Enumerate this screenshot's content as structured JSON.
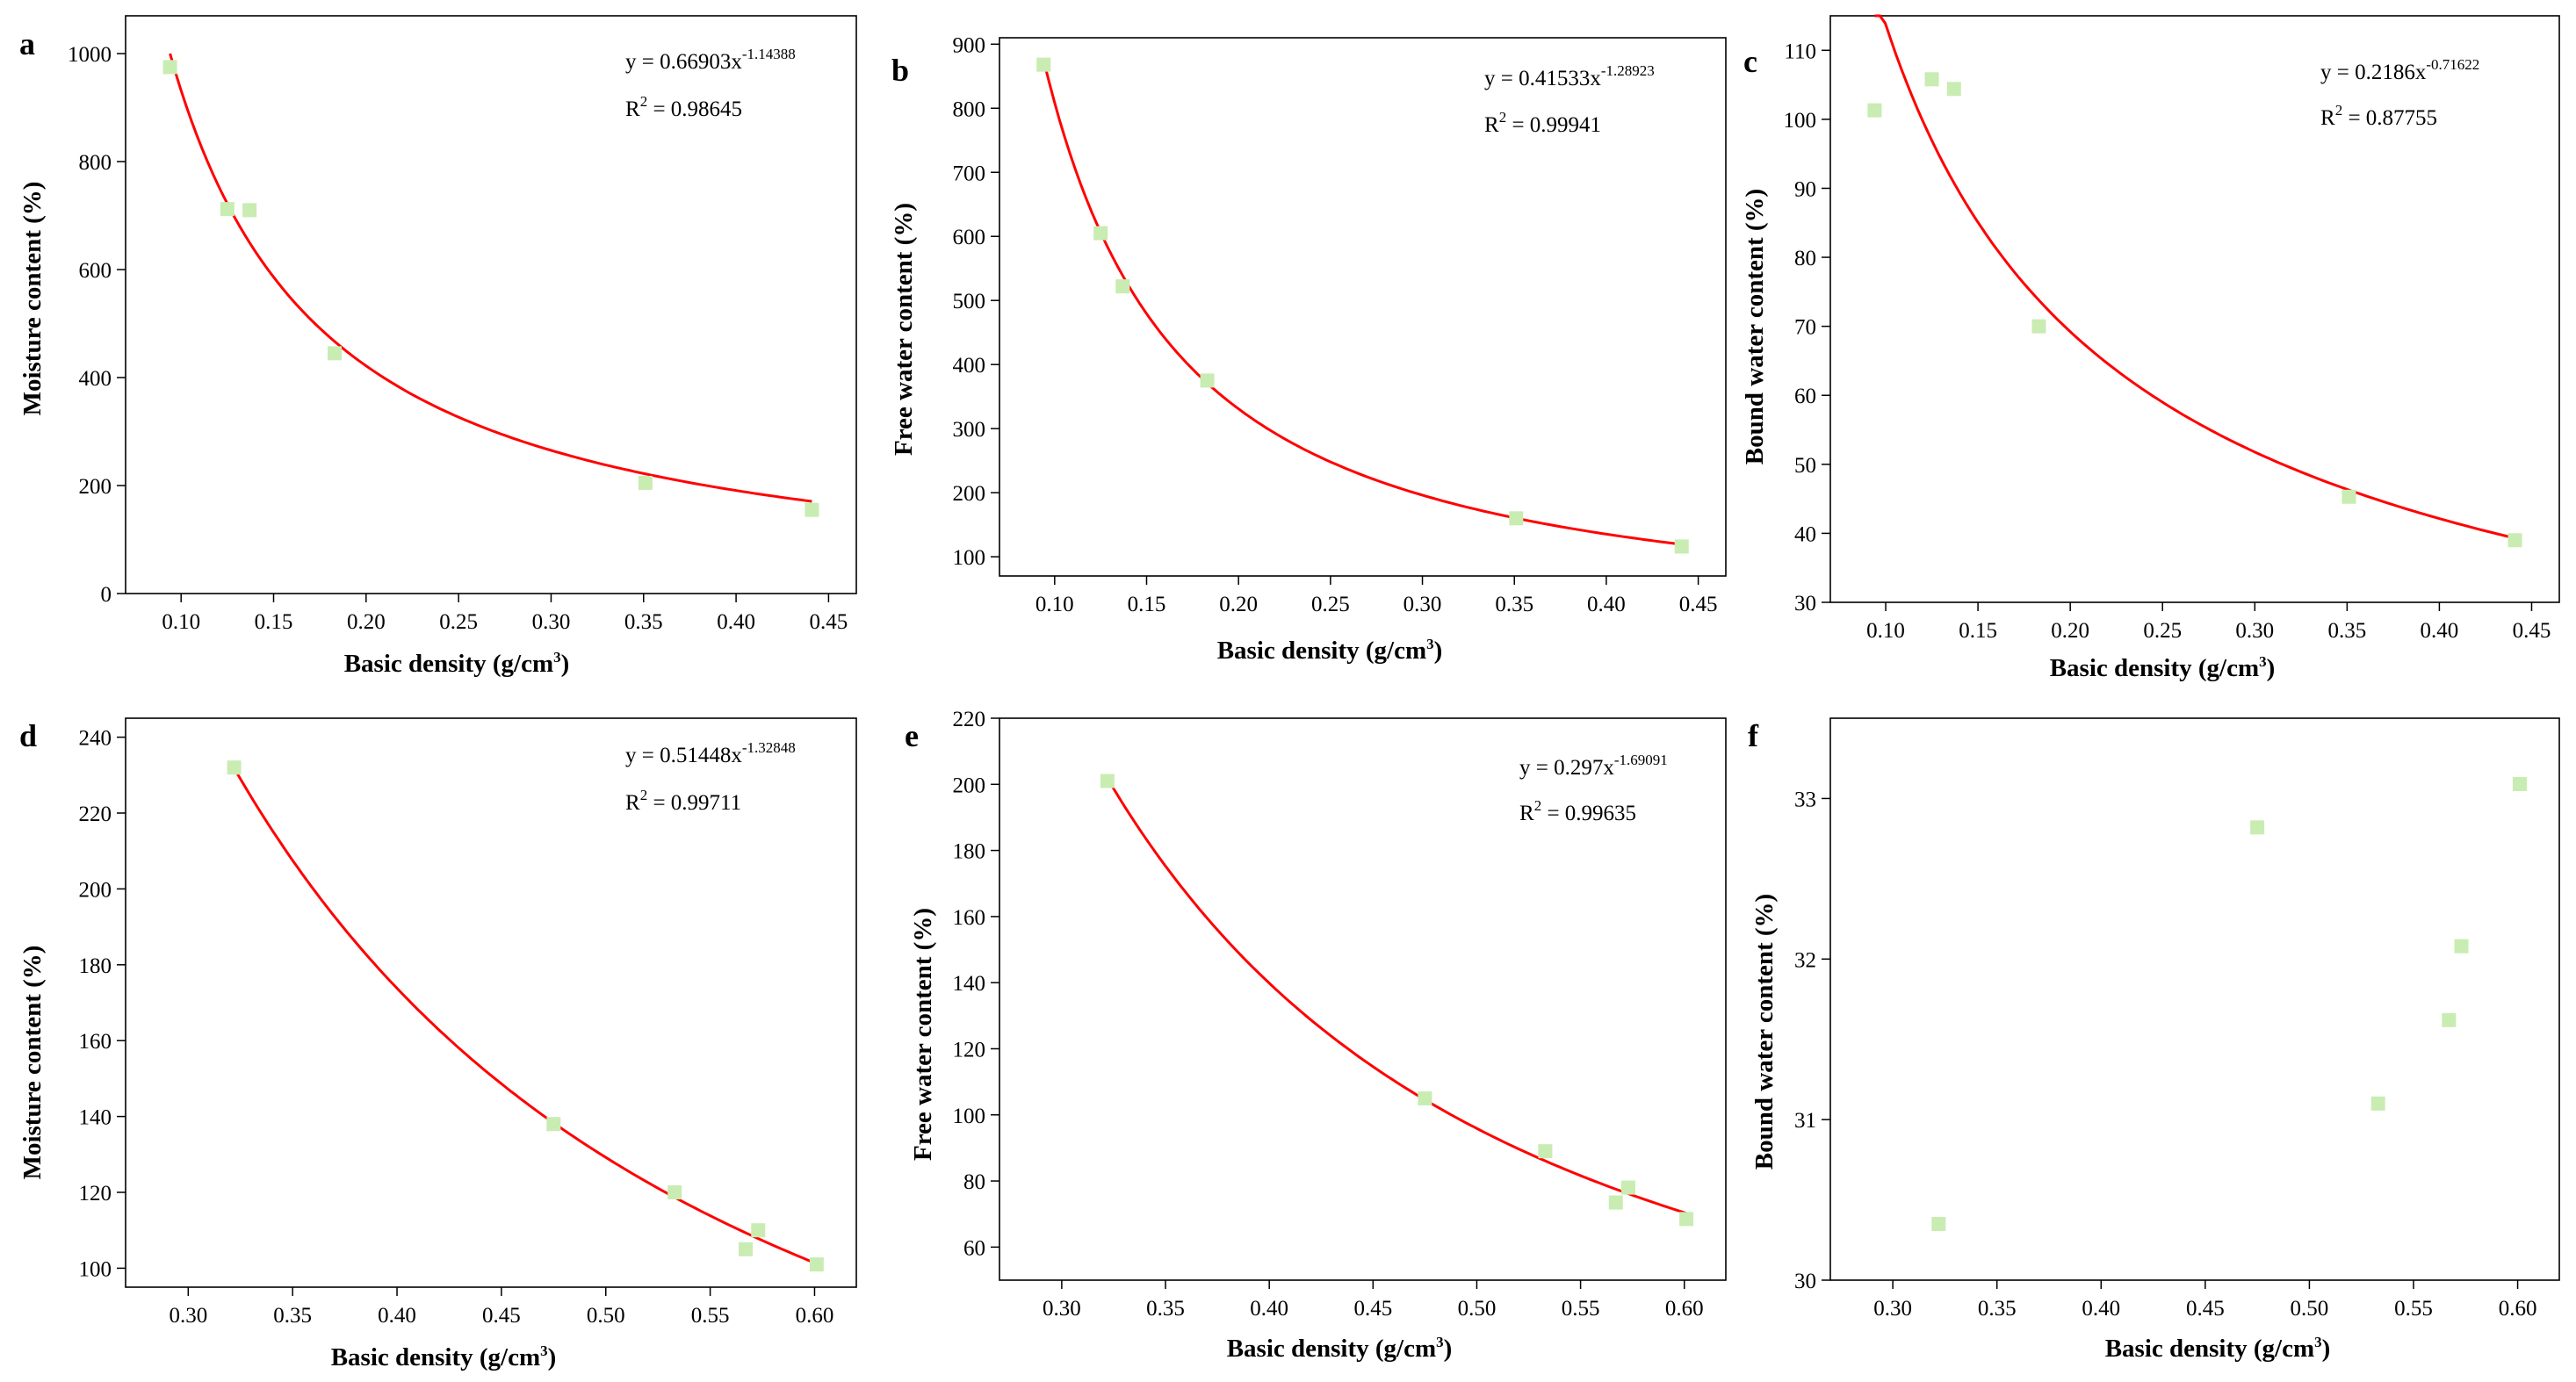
{
  "chart_data": [
    {
      "type": "scatter",
      "panel_label": "a",
      "xlabel": "Basic density (g/cm",
      "xlabel_sup": "3",
      "xlabel_end": ")",
      "ylabel": "Moisture content (%)",
      "xlim": [
        0.07,
        0.465
      ],
      "ylim": [
        0,
        1070
      ],
      "xticks": [
        0.1,
        0.15,
        0.2,
        0.25,
        0.3,
        0.35,
        0.4,
        0.45
      ],
      "xtick_labels": [
        "0.10",
        "0.15",
        "0.20",
        "0.25",
        "0.30",
        "0.35",
        "0.40",
        "0.45"
      ],
      "yticks": [
        0,
        200,
        400,
        600,
        800,
        1000
      ],
      "ytick_labels": [
        "0",
        "200",
        "400",
        "600",
        "800",
        "1000"
      ],
      "points": [
        {
          "x": 0.094,
          "y": 975
        },
        {
          "x": 0.125,
          "y": 712
        },
        {
          "x": 0.137,
          "y": 710
        },
        {
          "x": 0.183,
          "y": 445
        },
        {
          "x": 0.351,
          "y": 205
        },
        {
          "x": 0.441,
          "y": 155
        }
      ],
      "fit": {
        "a": 0.66903,
        "b": -1.14388,
        "x_range": [
          0.094,
          0.441
        ]
      },
      "equation": "y = 0.66903x",
      "equation_exp": "-1.14388",
      "r2_prefix": "R",
      "r2_sup": "2",
      "r2_value": " = 0.98645",
      "legend_position": "top-right"
    },
    {
      "type": "scatter",
      "panel_label": "b",
      "xlabel": "Basic density (g/cm",
      "xlabel_sup": "3",
      "xlabel_end": ")",
      "ylabel": "Free water content (%)",
      "xlim": [
        0.07,
        0.465
      ],
      "ylim": [
        70,
        910
      ],
      "xticks": [
        0.1,
        0.15,
        0.2,
        0.25,
        0.3,
        0.35,
        0.4,
        0.45
      ],
      "xtick_labels": [
        "0.10",
        "0.15",
        "0.20",
        "0.25",
        "0.30",
        "0.35",
        "0.40",
        "0.45"
      ],
      "yticks": [
        100,
        200,
        300,
        400,
        500,
        600,
        700,
        800,
        900
      ],
      "ytick_labels": [
        "100",
        "200",
        "300",
        "400",
        "500",
        "600",
        "700",
        "800",
        "900"
      ],
      "points": [
        {
          "x": 0.094,
          "y": 868
        },
        {
          "x": 0.125,
          "y": 605
        },
        {
          "x": 0.137,
          "y": 522
        },
        {
          "x": 0.183,
          "y": 375
        },
        {
          "x": 0.351,
          "y": 160
        },
        {
          "x": 0.441,
          "y": 116
        }
      ],
      "fit": {
        "a": 0.41533,
        "b": -1.28923,
        "x_range": [
          0.094,
          0.441
        ]
      },
      "equation": "y = 0.41533x",
      "equation_exp": "-1.28923",
      "r2_prefix": "R",
      "r2_sup": "2",
      "r2_value": " = 0.99941",
      "legend_position": "top-right"
    },
    {
      "type": "scatter",
      "panel_label": "c",
      "xlabel": "Basic density (g/cm",
      "xlabel_sup": "3",
      "xlabel_end": ")",
      "ylabel": "Bound water content (%)",
      "xlim": [
        0.07,
        0.465
      ],
      "ylim": [
        30,
        115
      ],
      "xticks": [
        0.1,
        0.15,
        0.2,
        0.25,
        0.3,
        0.35,
        0.4,
        0.45
      ],
      "xtick_labels": [
        "0.10",
        "0.15",
        "0.20",
        "0.25",
        "0.30",
        "0.35",
        "0.40",
        "0.45"
      ],
      "yticks": [
        30,
        40,
        50,
        60,
        70,
        80,
        90,
        100,
        110
      ],
      "ytick_labels": [
        "30",
        "40",
        "50",
        "60",
        "70",
        "80",
        "90",
        "100",
        "110"
      ],
      "points": [
        {
          "x": 0.094,
          "y": 101.3
        },
        {
          "x": 0.125,
          "y": 105.8
        },
        {
          "x": 0.137,
          "y": 104.4
        },
        {
          "x": 0.183,
          "y": 70
        },
        {
          "x": 0.351,
          "y": 45.3
        },
        {
          "x": 0.441,
          "y": 39
        }
      ],
      "fit": {
        "a": 0.2186,
        "b": -0.71622,
        "x_range": [
          0.094,
          0.441
        ]
      },
      "equation": "y = 0.2186x",
      "equation_exp": "-0.71622",
      "r2_prefix": "R",
      "r2_sup": "2",
      "r2_value": " = 0.87755",
      "legend_position": "top-right"
    },
    {
      "type": "scatter",
      "panel_label": "d",
      "xlabel": "Basic density (g/cm",
      "xlabel_sup": "3",
      "xlabel_end": ")",
      "ylabel": "Moisture content (%)",
      "xlim": [
        0.27,
        0.62
      ],
      "ylim": [
        95,
        245
      ],
      "xticks": [
        0.3,
        0.35,
        0.4,
        0.45,
        0.5,
        0.55,
        0.6
      ],
      "xtick_labels": [
        "0.30",
        "0.35",
        "0.40",
        "0.45",
        "0.50",
        "0.55",
        "0.60"
      ],
      "yticks": [
        100,
        120,
        140,
        160,
        180,
        200,
        220,
        240
      ],
      "ytick_labels": [
        "100",
        "120",
        "140",
        "160",
        "180",
        "200",
        "220",
        "240"
      ],
      "points": [
        {
          "x": 0.322,
          "y": 232
        },
        {
          "x": 0.475,
          "y": 138
        },
        {
          "x": 0.533,
          "y": 120
        },
        {
          "x": 0.567,
          "y": 105
        },
        {
          "x": 0.573,
          "y": 110
        },
        {
          "x": 0.601,
          "y": 101
        }
      ],
      "fit": {
        "a": 0.51448,
        "b": -1.32848,
        "x_range": [
          0.322,
          0.601
        ]
      },
      "equation": "y = 0.51448x",
      "equation_exp": "-1.32848",
      "r2_prefix": "R",
      "r2_sup": "2",
      "r2_value": " = 0.99711",
      "legend_position": "top-right"
    },
    {
      "type": "scatter",
      "panel_label": "e",
      "xlabel": "Basic density (g/cm",
      "xlabel_sup": "3",
      "xlabel_end": ")",
      "ylabel": "Free water content (%)",
      "xlim": [
        0.27,
        0.62
      ],
      "ylim": [
        50,
        220
      ],
      "xticks": [
        0.3,
        0.35,
        0.4,
        0.45,
        0.5,
        0.55,
        0.6
      ],
      "xtick_labels": [
        "0.30",
        "0.35",
        "0.40",
        "0.45",
        "0.50",
        "0.55",
        "0.60"
      ],
      "yticks": [
        60,
        80,
        100,
        120,
        140,
        160,
        180,
        200,
        220
      ],
      "ytick_labels": [
        "60",
        "80",
        "100",
        "120",
        "140",
        "160",
        "180",
        "200",
        "220"
      ],
      "points": [
        {
          "x": 0.322,
          "y": 201
        },
        {
          "x": 0.475,
          "y": 105
        },
        {
          "x": 0.533,
          "y": 89
        },
        {
          "x": 0.567,
          "y": 73.5
        },
        {
          "x": 0.573,
          "y": 78
        },
        {
          "x": 0.601,
          "y": 68.5
        }
      ],
      "fit": {
        "a": 0.297,
        "b": -1.69091,
        "x_range": [
          0.322,
          0.601
        ]
      },
      "equation": "y = 0.297x",
      "equation_exp": "-1.69091",
      "r2_prefix": "R",
      "r2_sup": "2",
      "r2_value": " = 0.99635",
      "legend_position": "top-right"
    },
    {
      "type": "scatter",
      "panel_label": "f",
      "xlabel": "Basic density (g/cm",
      "xlabel_sup": "3",
      "xlabel_end": ")",
      "ylabel": "Bound water content (%)",
      "xlim": [
        0.27,
        0.62
      ],
      "ylim": [
        30,
        33.5
      ],
      "xticks": [
        0.3,
        0.35,
        0.4,
        0.45,
        0.5,
        0.55,
        0.6
      ],
      "xtick_labels": [
        "0.30",
        "0.35",
        "0.40",
        "0.45",
        "0.50",
        "0.55",
        "0.60"
      ],
      "yticks": [
        30,
        31,
        32,
        33
      ],
      "ytick_labels": [
        "30",
        "31",
        "32",
        "33"
      ],
      "points": [
        {
          "x": 0.322,
          "y": 30.35
        },
        {
          "x": 0.475,
          "y": 32.82
        },
        {
          "x": 0.533,
          "y": 31.1
        },
        {
          "x": 0.567,
          "y": 31.62
        },
        {
          "x": 0.573,
          "y": 32.08
        },
        {
          "x": 0.601,
          "y": 33.09
        }
      ],
      "fit": null,
      "equation": null,
      "legend_position": "none"
    }
  ]
}
